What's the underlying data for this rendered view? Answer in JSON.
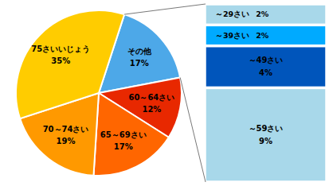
{
  "chart_data": [
    {
      "type": "pie",
      "categories": [
        "その他",
        "60～64さい",
        "65～69さい",
        "70～74さい",
        "75さいいじょう"
      ],
      "values": [
        17,
        12,
        17,
        19,
        35
      ],
      "value_labels": [
        "17%",
        "12%",
        "17%",
        "19%",
        "35%"
      ],
      "colors": [
        "#4da8e8",
        "#e82800",
        "#ff6600",
        "#ff9900",
        "#ffcc00"
      ],
      "data_labels": true
    },
    {
      "type": "bar",
      "stacked": true,
      "categories": [
        "～29さい",
        "～39さい",
        "～49さい",
        "～59さい"
      ],
      "values": [
        2,
        2,
        4,
        9
      ],
      "value_labels": [
        "2%",
        "2%",
        "4%",
        "9%"
      ],
      "colors": [
        "#a8d8ea",
        "#00aaff",
        "#0055bb",
        "#a8d8ea"
      ],
      "ylim": [
        0,
        17
      ],
      "tick_labels": false,
      "data_labels": true
    }
  ]
}
